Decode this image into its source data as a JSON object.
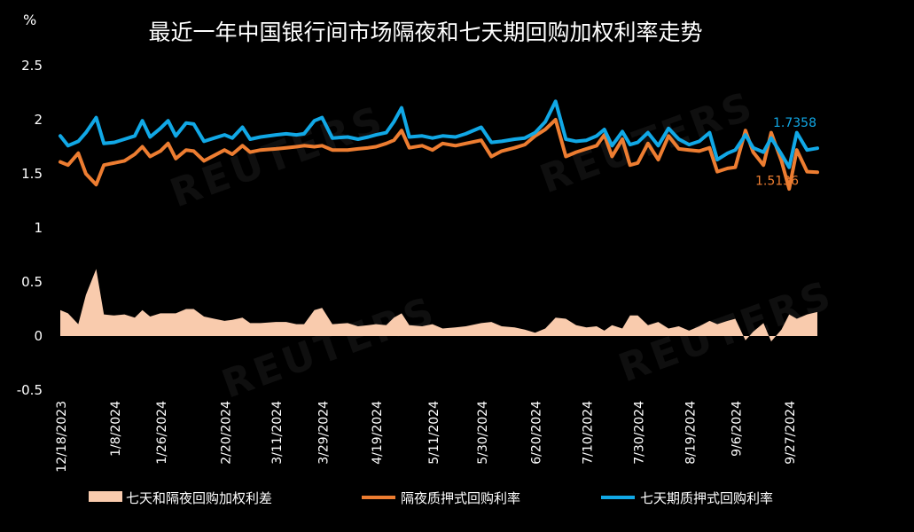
{
  "chart_data": {
    "type": "line",
    "title": "最近一年中国银行间市场隔夜和七天期回购加权利率走势",
    "ylabel": "%",
    "ylim": [
      -0.5,
      2.5
    ],
    "yticks": [
      "2.5",
      "2",
      "1.5",
      "1",
      "0.5",
      "0",
      "-0.5"
    ],
    "ytick_values": [
      2.5,
      2,
      1.5,
      1,
      0.5,
      0,
      -0.5
    ],
    "date_range": [
      "2023-12-18",
      "2024-10-08"
    ],
    "xtick_labels": [
      "12/18/2023",
      "1/8/2024",
      "1/26/2024",
      "2/20/2024",
      "3/11/2024",
      "3/29/2024",
      "4/19/2024",
      "5/11/2024",
      "5/30/2024",
      "6/20/2024",
      "7/10/2024",
      "7/30/2024",
      "8/19/2024",
      "9/6/2024",
      "9/27/2024"
    ],
    "xtick_dates": [
      "2023-12-18",
      "2024-01-08",
      "2024-01-26",
      "2024-02-20",
      "2024-03-11",
      "2024-03-29",
      "2024-04-19",
      "2024-05-11",
      "2024-05-30",
      "2024-06-20",
      "2024-07-10",
      "2024-07-30",
      "2024-08-19",
      "2024-09-06",
      "2024-09-27"
    ],
    "legend_position": "bottom",
    "grid": false,
    "series": [
      {
        "name": "七天期质押式回购利率",
        "type": "line",
        "color": "#11a8e6",
        "end_label": "1.7358",
        "points": [
          [
            "2023-12-18",
            1.85
          ],
          [
            "2023-12-21",
            1.76
          ],
          [
            "2023-12-25",
            1.8
          ],
          [
            "2023-12-28",
            1.88
          ],
          [
            "2024-01-01",
            2.02
          ],
          [
            "2024-01-04",
            1.78
          ],
          [
            "2024-01-08",
            1.79
          ],
          [
            "2024-01-12",
            1.82
          ],
          [
            "2024-01-16",
            1.85
          ],
          [
            "2024-01-19",
            1.99
          ],
          [
            "2024-01-22",
            1.84
          ],
          [
            "2024-01-26",
            1.92
          ],
          [
            "2024-01-29",
            1.99
          ],
          [
            "2024-02-01",
            1.85
          ],
          [
            "2024-02-05",
            1.97
          ],
          [
            "2024-02-08",
            1.96
          ],
          [
            "2024-02-12",
            1.8
          ],
          [
            "2024-02-16",
            1.83
          ],
          [
            "2024-02-20",
            1.86
          ],
          [
            "2024-02-23",
            1.83
          ],
          [
            "2024-02-27",
            1.93
          ],
          [
            "2024-03-01",
            1.82
          ],
          [
            "2024-03-05",
            1.84
          ],
          [
            "2024-03-11",
            1.86
          ],
          [
            "2024-03-15",
            1.87
          ],
          [
            "2024-03-19",
            1.86
          ],
          [
            "2024-03-22",
            1.87
          ],
          [
            "2024-03-26",
            1.99
          ],
          [
            "2024-03-29",
            2.02
          ],
          [
            "2024-04-02",
            1.83
          ],
          [
            "2024-04-08",
            1.84
          ],
          [
            "2024-04-12",
            1.82
          ],
          [
            "2024-04-16",
            1.84
          ],
          [
            "2024-04-19",
            1.86
          ],
          [
            "2024-04-23",
            1.88
          ],
          [
            "2024-04-26",
            1.98
          ],
          [
            "2024-04-29",
            2.11
          ],
          [
            "2024-05-02",
            1.84
          ],
          [
            "2024-05-07",
            1.85
          ],
          [
            "2024-05-11",
            1.83
          ],
          [
            "2024-05-15",
            1.85
          ],
          [
            "2024-05-20",
            1.84
          ],
          [
            "2024-05-24",
            1.87
          ],
          [
            "2024-05-30",
            1.93
          ],
          [
            "2024-06-03",
            1.79
          ],
          [
            "2024-06-07",
            1.8
          ],
          [
            "2024-06-12",
            1.82
          ],
          [
            "2024-06-16",
            1.83
          ],
          [
            "2024-06-20",
            1.88
          ],
          [
            "2024-06-24",
            1.98
          ],
          [
            "2024-06-28",
            2.17
          ],
          [
            "2024-07-02",
            1.82
          ],
          [
            "2024-07-06",
            1.8
          ],
          [
            "2024-07-10",
            1.81
          ],
          [
            "2024-07-14",
            1.85
          ],
          [
            "2024-07-17",
            1.91
          ],
          [
            "2024-07-20",
            1.76
          ],
          [
            "2024-07-24",
            1.89
          ],
          [
            "2024-07-27",
            1.77
          ],
          [
            "2024-07-30",
            1.79
          ],
          [
            "2024-08-03",
            1.88
          ],
          [
            "2024-08-07",
            1.76
          ],
          [
            "2024-08-11",
            1.92
          ],
          [
            "2024-08-15",
            1.82
          ],
          [
            "2024-08-19",
            1.77
          ],
          [
            "2024-08-23",
            1.8
          ],
          [
            "2024-08-27",
            1.88
          ],
          [
            "2024-08-30",
            1.63
          ],
          [
            "2024-09-03",
            1.69
          ],
          [
            "2024-09-06",
            1.72
          ],
          [
            "2024-09-10",
            1.86
          ],
          [
            "2024-09-13",
            1.74
          ],
          [
            "2024-09-17",
            1.7
          ],
          [
            "2024-09-20",
            1.83
          ],
          [
            "2024-09-24",
            1.68
          ],
          [
            "2024-09-27",
            1.56
          ],
          [
            "2024-09-30",
            1.88
          ],
          [
            "2024-10-04",
            1.72
          ],
          [
            "2024-10-08",
            1.7358
          ]
        ]
      },
      {
        "name": "隔夜质押式回购利率",
        "type": "line",
        "color": "#ed7d31",
        "end_label": "1.5136",
        "points": [
          [
            "2023-12-18",
            1.61
          ],
          [
            "2023-12-21",
            1.58
          ],
          [
            "2023-12-25",
            1.69
          ],
          [
            "2023-12-28",
            1.5
          ],
          [
            "2024-01-01",
            1.4
          ],
          [
            "2024-01-04",
            1.58
          ],
          [
            "2024-01-08",
            1.6
          ],
          [
            "2024-01-12",
            1.62
          ],
          [
            "2024-01-16",
            1.68
          ],
          [
            "2024-01-19",
            1.75
          ],
          [
            "2024-01-22",
            1.66
          ],
          [
            "2024-01-26",
            1.71
          ],
          [
            "2024-01-29",
            1.78
          ],
          [
            "2024-02-01",
            1.64
          ],
          [
            "2024-02-05",
            1.72
          ],
          [
            "2024-02-08",
            1.71
          ],
          [
            "2024-02-12",
            1.62
          ],
          [
            "2024-02-16",
            1.67
          ],
          [
            "2024-02-20",
            1.72
          ],
          [
            "2024-02-23",
            1.68
          ],
          [
            "2024-02-27",
            1.76
          ],
          [
            "2024-03-01",
            1.7
          ],
          [
            "2024-03-05",
            1.72
          ],
          [
            "2024-03-11",
            1.73
          ],
          [
            "2024-03-15",
            1.74
          ],
          [
            "2024-03-19",
            1.75
          ],
          [
            "2024-03-22",
            1.76
          ],
          [
            "2024-03-26",
            1.75
          ],
          [
            "2024-03-29",
            1.76
          ],
          [
            "2024-04-02",
            1.72
          ],
          [
            "2024-04-08",
            1.72
          ],
          [
            "2024-04-12",
            1.73
          ],
          [
            "2024-04-16",
            1.74
          ],
          [
            "2024-04-19",
            1.75
          ],
          [
            "2024-04-23",
            1.78
          ],
          [
            "2024-04-26",
            1.81
          ],
          [
            "2024-04-29",
            1.9
          ],
          [
            "2024-05-02",
            1.74
          ],
          [
            "2024-05-07",
            1.76
          ],
          [
            "2024-05-11",
            1.72
          ],
          [
            "2024-05-15",
            1.78
          ],
          [
            "2024-05-20",
            1.76
          ],
          [
            "2024-05-24",
            1.78
          ],
          [
            "2024-05-30",
            1.81
          ],
          [
            "2024-06-03",
            1.66
          ],
          [
            "2024-06-07",
            1.71
          ],
          [
            "2024-06-12",
            1.74
          ],
          [
            "2024-06-16",
            1.77
          ],
          [
            "2024-06-20",
            1.85
          ],
          [
            "2024-06-24",
            1.91
          ],
          [
            "2024-06-28",
            2.0
          ],
          [
            "2024-07-02",
            1.66
          ],
          [
            "2024-07-06",
            1.7
          ],
          [
            "2024-07-10",
            1.73
          ],
          [
            "2024-07-14",
            1.76
          ],
          [
            "2024-07-17",
            1.86
          ],
          [
            "2024-07-20",
            1.66
          ],
          [
            "2024-07-24",
            1.82
          ],
          [
            "2024-07-27",
            1.58
          ],
          [
            "2024-07-30",
            1.6
          ],
          [
            "2024-08-03",
            1.78
          ],
          [
            "2024-08-07",
            1.63
          ],
          [
            "2024-08-11",
            1.85
          ],
          [
            "2024-08-15",
            1.73
          ],
          [
            "2024-08-19",
            1.72
          ],
          [
            "2024-08-23",
            1.71
          ],
          [
            "2024-08-27",
            1.74
          ],
          [
            "2024-08-30",
            1.52
          ],
          [
            "2024-09-03",
            1.55
          ],
          [
            "2024-09-06",
            1.56
          ],
          [
            "2024-09-10",
            1.9
          ],
          [
            "2024-09-13",
            1.7
          ],
          [
            "2024-09-17",
            1.58
          ],
          [
            "2024-09-20",
            1.88
          ],
          [
            "2024-09-24",
            1.62
          ],
          [
            "2024-09-27",
            1.36
          ],
          [
            "2024-09-30",
            1.72
          ],
          [
            "2024-10-04",
            1.52
          ],
          [
            "2024-10-08",
            1.5136
          ]
        ]
      },
      {
        "name": "七天和隔夜回购加权利差",
        "type": "area",
        "color": "#f9cbad",
        "points": [
          [
            "2023-12-18",
            0.24
          ],
          [
            "2023-12-21",
            0.21
          ],
          [
            "2023-12-25",
            0.11
          ],
          [
            "2023-12-28",
            0.38
          ],
          [
            "2024-01-01",
            0.62
          ],
          [
            "2024-01-04",
            0.2
          ],
          [
            "2024-01-08",
            0.19
          ],
          [
            "2024-01-12",
            0.2
          ],
          [
            "2024-01-16",
            0.17
          ],
          [
            "2024-01-19",
            0.24
          ],
          [
            "2024-01-22",
            0.18
          ],
          [
            "2024-01-26",
            0.21
          ],
          [
            "2024-01-29",
            0.21
          ],
          [
            "2024-02-01",
            0.21
          ],
          [
            "2024-02-05",
            0.25
          ],
          [
            "2024-02-08",
            0.25
          ],
          [
            "2024-02-12",
            0.18
          ],
          [
            "2024-02-16",
            0.16
          ],
          [
            "2024-02-20",
            0.14
          ],
          [
            "2024-02-23",
            0.15
          ],
          [
            "2024-02-27",
            0.17
          ],
          [
            "2024-03-01",
            0.12
          ],
          [
            "2024-03-05",
            0.12
          ],
          [
            "2024-03-11",
            0.13
          ],
          [
            "2024-03-15",
            0.13
          ],
          [
            "2024-03-19",
            0.11
          ],
          [
            "2024-03-22",
            0.11
          ],
          [
            "2024-03-26",
            0.24
          ],
          [
            "2024-03-29",
            0.26
          ],
          [
            "2024-04-02",
            0.11
          ],
          [
            "2024-04-08",
            0.12
          ],
          [
            "2024-04-12",
            0.09
          ],
          [
            "2024-04-16",
            0.1
          ],
          [
            "2024-04-19",
            0.11
          ],
          [
            "2024-04-23",
            0.1
          ],
          [
            "2024-04-26",
            0.17
          ],
          [
            "2024-04-29",
            0.21
          ],
          [
            "2024-05-02",
            0.1
          ],
          [
            "2024-05-07",
            0.09
          ],
          [
            "2024-05-11",
            0.11
          ],
          [
            "2024-05-15",
            0.07
          ],
          [
            "2024-05-20",
            0.08
          ],
          [
            "2024-05-24",
            0.09
          ],
          [
            "2024-05-30",
            0.12
          ],
          [
            "2024-06-03",
            0.13
          ],
          [
            "2024-06-07",
            0.09
          ],
          [
            "2024-06-12",
            0.08
          ],
          [
            "2024-06-16",
            0.06
          ],
          [
            "2024-06-20",
            0.03
          ],
          [
            "2024-06-24",
            0.07
          ],
          [
            "2024-06-28",
            0.17
          ],
          [
            "2024-07-02",
            0.16
          ],
          [
            "2024-07-06",
            0.1
          ],
          [
            "2024-07-10",
            0.08
          ],
          [
            "2024-07-14",
            0.09
          ],
          [
            "2024-07-17",
            0.05
          ],
          [
            "2024-07-20",
            0.1
          ],
          [
            "2024-07-24",
            0.07
          ],
          [
            "2024-07-27",
            0.19
          ],
          [
            "2024-07-30",
            0.19
          ],
          [
            "2024-08-03",
            0.1
          ],
          [
            "2024-08-07",
            0.13
          ],
          [
            "2024-08-11",
            0.07
          ],
          [
            "2024-08-15",
            0.09
          ],
          [
            "2024-08-19",
            0.05
          ],
          [
            "2024-08-23",
            0.09
          ],
          [
            "2024-08-27",
            0.14
          ],
          [
            "2024-08-30",
            0.11
          ],
          [
            "2024-09-03",
            0.14
          ],
          [
            "2024-09-06",
            0.16
          ],
          [
            "2024-09-10",
            -0.04
          ],
          [
            "2024-09-13",
            0.04
          ],
          [
            "2024-09-17",
            0.12
          ],
          [
            "2024-09-20",
            -0.05
          ],
          [
            "2024-09-24",
            0.06
          ],
          [
            "2024-09-27",
            0.2
          ],
          [
            "2024-09-30",
            0.16
          ],
          [
            "2024-10-04",
            0.2
          ],
          [
            "2024-10-08",
            0.2222
          ]
        ]
      }
    ]
  },
  "legend": [
    {
      "label": "七天和隔夜回购加权利差",
      "color": "#f9cbad",
      "kind": "area"
    },
    {
      "label": "隔夜质押式回购利率",
      "color": "#ed7d31",
      "kind": "line"
    },
    {
      "label": "七天期质押式回购利率",
      "color": "#11a8e6",
      "kind": "line"
    }
  ],
  "watermark": "REUTERS"
}
